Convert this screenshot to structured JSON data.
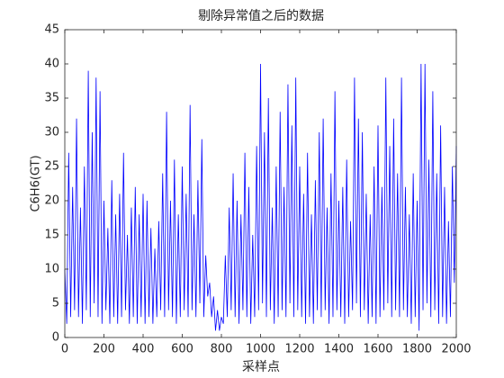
{
  "chart_data": {
    "type": "line",
    "title": "剔除异常值之后的数据",
    "xlabel": "采样点",
    "ylabel": "C6H6(GT)",
    "color": "#0000ff",
    "x": [
      0,
      10,
      20,
      30,
      40,
      50,
      60,
      70,
      80,
      90,
      100,
      110,
      120,
      130,
      140,
      150,
      160,
      170,
      180,
      190,
      200,
      210,
      220,
      230,
      240,
      250,
      260,
      270,
      280,
      290,
      300,
      310,
      320,
      330,
      340,
      350,
      360,
      370,
      380,
      390,
      400,
      410,
      420,
      430,
      440,
      450,
      460,
      470,
      480,
      490,
      500,
      510,
      520,
      530,
      540,
      550,
      560,
      570,
      580,
      590,
      600,
      610,
      620,
      630,
      640,
      650,
      660,
      670,
      680,
      690,
      700,
      710,
      720,
      730,
      740,
      750,
      760,
      770,
      780,
      790,
      800,
      810,
      820,
      830,
      840,
      850,
      860,
      870,
      880,
      890,
      900,
      910,
      920,
      930,
      940,
      950,
      960,
      970,
      980,
      990,
      1000,
      1010,
      1020,
      1030,
      1040,
      1050,
      1060,
      1070,
      1080,
      1090,
      1100,
      1110,
      1120,
      1130,
      1140,
      1150,
      1160,
      1170,
      1180,
      1190,
      1200,
      1210,
      1220,
      1230,
      1240,
      1250,
      1260,
      1270,
      1280,
      1290,
      1300,
      1310,
      1320,
      1330,
      1340,
      1350,
      1360,
      1370,
      1380,
      1390,
      1400,
      1410,
      1420,
      1430,
      1440,
      1450,
      1460,
      1470,
      1480,
      1490,
      1500,
      1510,
      1520,
      1530,
      1540,
      1550,
      1560,
      1570,
      1580,
      1590,
      1600,
      1610,
      1620,
      1630,
      1640,
      1650,
      1660,
      1670,
      1680,
      1690,
      1700,
      1710,
      1720,
      1730,
      1740,
      1750,
      1760,
      1770,
      1780,
      1790,
      1800,
      1810,
      1820,
      1830,
      1840,
      1850,
      1860,
      1870,
      1880,
      1890,
      1900,
      1910,
      1920,
      1930,
      1940,
      1950,
      1960,
      1970,
      1980,
      1990,
      2000
    ],
    "values": [
      10,
      2,
      27,
      3,
      22,
      4,
      32,
      3,
      19,
      2,
      25,
      4,
      39,
      3,
      30,
      5,
      38,
      3,
      36,
      2,
      20,
      4,
      16,
      2,
      23,
      3,
      18,
      2,
      21,
      3,
      27,
      4,
      15,
      2,
      19,
      3,
      22,
      2,
      18,
      3,
      21,
      2,
      20,
      3,
      16,
      2,
      13,
      3,
      17,
      4,
      24,
      3,
      33,
      4,
      20,
      3,
      26,
      2,
      18,
      3,
      25,
      4,
      21,
      3,
      34,
      4,
      18,
      3,
      23,
      5,
      29,
      3,
      12,
      6,
      8,
      3,
      6,
      1,
      4,
      1,
      3,
      2,
      12,
      3,
      19,
      4,
      24,
      3,
      20,
      2,
      18,
      4,
      27,
      3,
      22,
      2,
      15,
      3,
      28,
      4,
      40,
      5,
      30,
      3,
      35,
      4,
      19,
      2,
      25,
      3,
      33,
      4,
      22,
      3,
      37,
      5,
      31,
      3,
      38,
      4,
      25,
      3,
      21,
      2,
      27,
      3,
      18,
      2,
      23,
      4,
      30,
      3,
      32,
      4,
      19,
      2,
      24,
      3,
      36,
      4,
      20,
      3,
      22,
      2,
      26,
      3,
      17,
      4,
      38,
      5,
      32,
      3,
      30,
      4,
      21,
      2,
      18,
      3,
      25,
      2,
      31,
      3,
      22,
      4,
      38,
      5,
      28,
      3,
      32,
      4,
      24,
      3,
      38,
      4,
      22,
      3,
      18,
      2,
      24,
      3,
      20,
      1,
      40,
      4,
      40,
      5,
      26,
      3,
      36,
      4,
      24,
      2,
      31,
      3,
      22,
      2,
      17,
      3,
      25,
      8,
      28
    ],
    "xlim": [
      0,
      2000
    ],
    "xticks": [
      0,
      200,
      400,
      600,
      800,
      1000,
      1200,
      1400,
      1600,
      1800,
      2000
    ],
    "ylim": [
      0,
      45
    ],
    "yticks": [
      0,
      5,
      10,
      15,
      20,
      25,
      30,
      35,
      40,
      45
    ]
  }
}
